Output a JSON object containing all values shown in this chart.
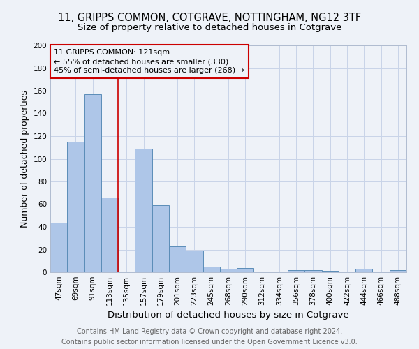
{
  "title1": "11, GRIPPS COMMON, COTGRAVE, NOTTINGHAM, NG12 3TF",
  "title2": "Size of property relative to detached houses in Cotgrave",
  "xlabel": "Distribution of detached houses by size in Cotgrave",
  "ylabel": "Number of detached properties",
  "categories": [
    "47sqm",
    "69sqm",
    "91sqm",
    "113sqm",
    "135sqm",
    "157sqm",
    "179sqm",
    "201sqm",
    "223sqm",
    "245sqm",
    "268sqm",
    "290sqm",
    "312sqm",
    "334sqm",
    "356sqm",
    "378sqm",
    "400sqm",
    "422sqm",
    "444sqm",
    "466sqm",
    "488sqm"
  ],
  "values": [
    44,
    115,
    157,
    66,
    0,
    109,
    59,
    23,
    19,
    5,
    3,
    4,
    0,
    0,
    2,
    2,
    1,
    0,
    3,
    0,
    2
  ],
  "bar_color": "#aec6e8",
  "bar_edge_color": "#5b8db8",
  "grid_color": "#c8d4e8",
  "background_color": "#eef2f8",
  "annotation_box_text": "11 GRIPPS COMMON: 121sqm\n← 55% of detached houses are smaller (330)\n45% of semi-detached houses are larger (268) →",
  "annotation_box_color": "#cc0000",
  "property_line_x": 3.5,
  "ylim": [
    0,
    200
  ],
  "yticks": [
    0,
    20,
    40,
    60,
    80,
    100,
    120,
    140,
    160,
    180,
    200
  ],
  "footer_line1": "Contains HM Land Registry data © Crown copyright and database right 2024.",
  "footer_line2": "Contains public sector information licensed under the Open Government Licence v3.0.",
  "title_fontsize": 10.5,
  "subtitle_fontsize": 9.5,
  "axis_label_fontsize": 9,
  "tick_fontsize": 7.5,
  "annotation_fontsize": 8,
  "footer_fontsize": 7
}
